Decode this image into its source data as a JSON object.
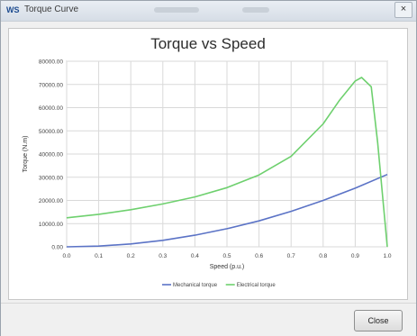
{
  "window": {
    "title": "Torque Curve",
    "app_icon": "WS",
    "close_glyph": "×"
  },
  "footer": {
    "close_label": "Close"
  },
  "colors": {
    "mechanical": "#5b73c6",
    "electrical": "#6ed06e",
    "grid": "#d9d9d9"
  },
  "chart_data": {
    "type": "line",
    "title": "Torque vs Speed",
    "xlabel": "Speed (p.u.)",
    "ylabel": "Torque (N.m)",
    "xlim": [
      0.0,
      1.0
    ],
    "ylim": [
      0,
      80000
    ],
    "x_ticks": [
      "0.0",
      "0.1",
      "0.2",
      "0.3",
      "0.4",
      "0.5",
      "0.6",
      "0.7",
      "0.8",
      "0.9",
      "1.0"
    ],
    "y_ticks": [
      "0.00",
      "10000.00",
      "20000.00",
      "30000.00",
      "40000.00",
      "50000.00",
      "60000.00",
      "70000.00",
      "80000.00"
    ],
    "grid": true,
    "legend_position": "bottom-center",
    "series": [
      {
        "name": "Mechanical torque",
        "x": [
          0.0,
          0.1,
          0.2,
          0.3,
          0.4,
          0.5,
          0.6,
          0.7,
          0.8,
          0.9,
          1.0
        ],
        "y": [
          0,
          320,
          1250,
          2800,
          5000,
          7800,
          11200,
          15300,
          20000,
          25300,
          31200
        ]
      },
      {
        "name": "Electrical torque",
        "x": [
          0.0,
          0.1,
          0.2,
          0.3,
          0.4,
          0.5,
          0.6,
          0.7,
          0.8,
          0.85,
          0.9,
          0.92,
          0.95,
          0.97,
          1.0
        ],
        "y": [
          12500,
          14000,
          16000,
          18500,
          21500,
          25500,
          31000,
          39000,
          53000,
          63000,
          71500,
          73000,
          69000,
          45000,
          0
        ]
      }
    ]
  }
}
